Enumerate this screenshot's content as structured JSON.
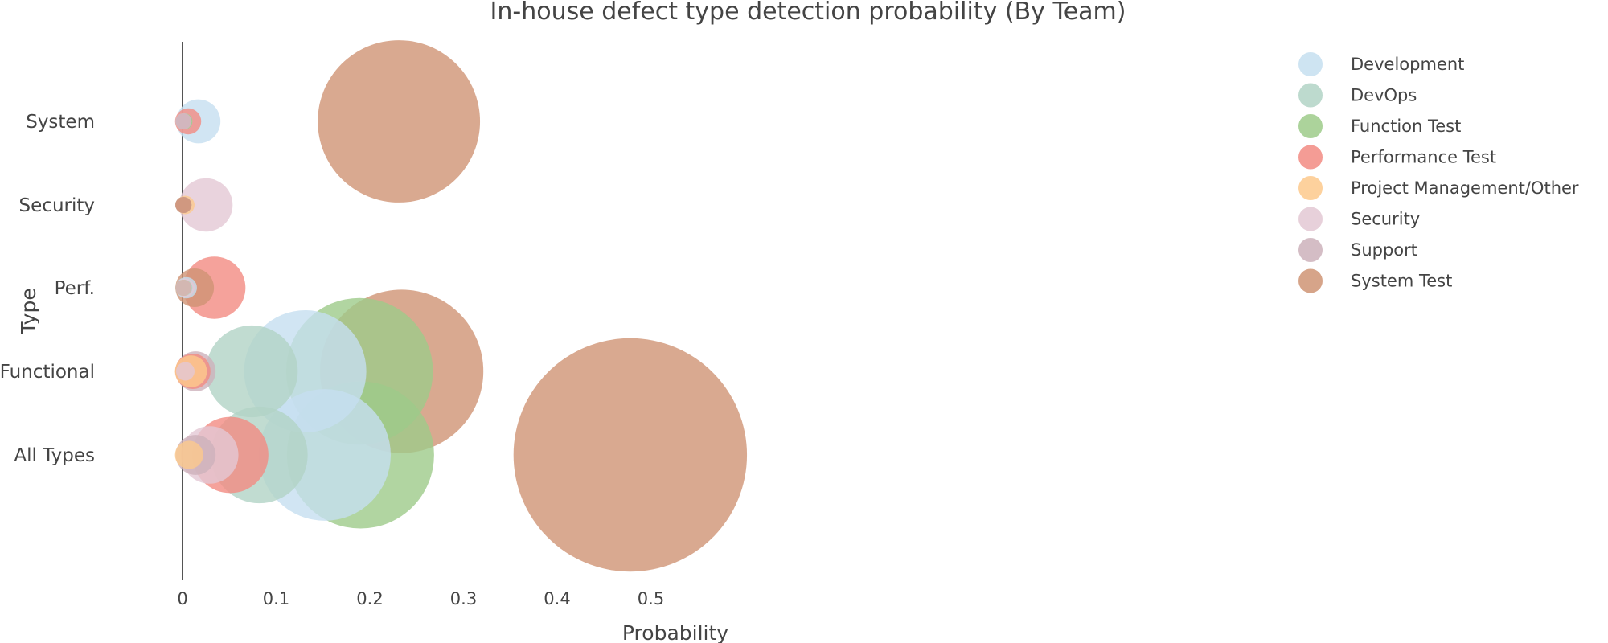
{
  "chart_data": {
    "type": "scatter",
    "subtype": "bubble",
    "title": "In-house defect type detection probability (By Team)",
    "xlabel": "Probability",
    "ylabel": "Type",
    "xlim": [
      -0.005,
      0.6
    ],
    "x_ticks": [
      0,
      0.1,
      0.2,
      0.3,
      0.4,
      0.5
    ],
    "x_tick_labels": [
      "0",
      "0.1",
      "0.2",
      "0.3",
      "0.4",
      "0.5"
    ],
    "categories": [
      "All Types",
      "Functional",
      "Perf.",
      "Security",
      "System"
    ],
    "grid": false,
    "legend_position": "top-right",
    "series": [
      {
        "name": "Development",
        "color": "#c6dff0",
        "points": [
          {
            "category": "All Types",
            "x": 0.152,
            "size": 0.152
          },
          {
            "category": "Functional",
            "x": 0.131,
            "size": 0.131
          },
          {
            "category": "Perf.",
            "x": 0.004,
            "size": 0.004
          },
          {
            "category": "Security",
            "x": 0.001,
            "size": 0.001
          },
          {
            "category": "System",
            "x": 0.017,
            "size": 0.017
          }
        ]
      },
      {
        "name": "DevOps",
        "color": "#b1d3c6",
        "points": [
          {
            "category": "All Types",
            "x": 0.082,
            "size": 0.082
          },
          {
            "category": "Functional",
            "x": 0.074,
            "size": 0.074
          },
          {
            "category": "Perf.",
            "x": 0.002,
            "size": 0.002
          },
          {
            "category": "Security",
            "x": 0.001,
            "size": 0.001
          },
          {
            "category": "System",
            "x": 0.002,
            "size": 0.002
          }
        ]
      },
      {
        "name": "Function Test",
        "color": "#9ecb8a",
        "points": [
          {
            "category": "All Types",
            "x": 0.19,
            "size": 0.19
          },
          {
            "category": "Functional",
            "x": 0.189,
            "size": 0.189
          },
          {
            "category": "Perf.",
            "x": 0.001,
            "size": 0.001
          },
          {
            "category": "Security",
            "x": 0.001,
            "size": 0.001
          },
          {
            "category": "System",
            "x": 0.002,
            "size": 0.002
          }
        ]
      },
      {
        "name": "Performance Test",
        "color": "#f28b82",
        "points": [
          {
            "category": "All Types",
            "x": 0.051,
            "size": 0.051
          },
          {
            "category": "Functional",
            "x": 0.011,
            "size": 0.011
          },
          {
            "category": "Perf.",
            "x": 0.034,
            "size": 0.034
          },
          {
            "category": "Security",
            "x": 0.001,
            "size": 0.001
          },
          {
            "category": "System",
            "x": 0.006,
            "size": 0.006
          }
        ]
      },
      {
        "name": "Project Management/Other",
        "color": "#fdc98c",
        "points": [
          {
            "category": "All Types",
            "x": 0.007,
            "size": 0.007
          },
          {
            "category": "Functional",
            "x": 0.009,
            "size": 0.009
          },
          {
            "category": "Perf.",
            "x": 0.001,
            "size": 0.001
          },
          {
            "category": "Security",
            "x": 0.003,
            "size": 0.003
          },
          {
            "category": "System",
            "x": 0.001,
            "size": 0.001
          }
        ]
      },
      {
        "name": "Security",
        "color": "#e3c8d4",
        "points": [
          {
            "category": "All Types",
            "x": 0.029,
            "size": 0.029
          },
          {
            "category": "Functional",
            "x": 0.003,
            "size": 0.003
          },
          {
            "category": "Perf.",
            "x": 0.003,
            "size": 0.003
          },
          {
            "category": "Security",
            "x": 0.025,
            "size": 0.025
          },
          {
            "category": "System",
            "x": 0.001,
            "size": 0.001
          }
        ]
      },
      {
        "name": "Support",
        "color": "#cdb1bb",
        "points": [
          {
            "category": "All Types",
            "x": 0.014,
            "size": 0.014
          },
          {
            "category": "Functional",
            "x": 0.014,
            "size": 0.014
          },
          {
            "category": "Perf.",
            "x": 0.001,
            "size": 0.001
          },
          {
            "category": "Security",
            "x": 0.001,
            "size": 0.001
          },
          {
            "category": "System",
            "x": 0.001,
            "size": 0.001
          }
        ]
      },
      {
        "name": "System Test",
        "color": "#cf9474",
        "points": [
          {
            "category": "All Types",
            "x": 0.478,
            "size": 0.478
          },
          {
            "category": "Functional",
            "x": 0.234,
            "size": 0.234
          },
          {
            "category": "Perf.",
            "x": 0.013,
            "size": 0.013
          },
          {
            "category": "Security",
            "x": 0.001,
            "size": 0.001
          },
          {
            "category": "System",
            "x": 0.231,
            "size": 0.231
          }
        ]
      }
    ]
  }
}
